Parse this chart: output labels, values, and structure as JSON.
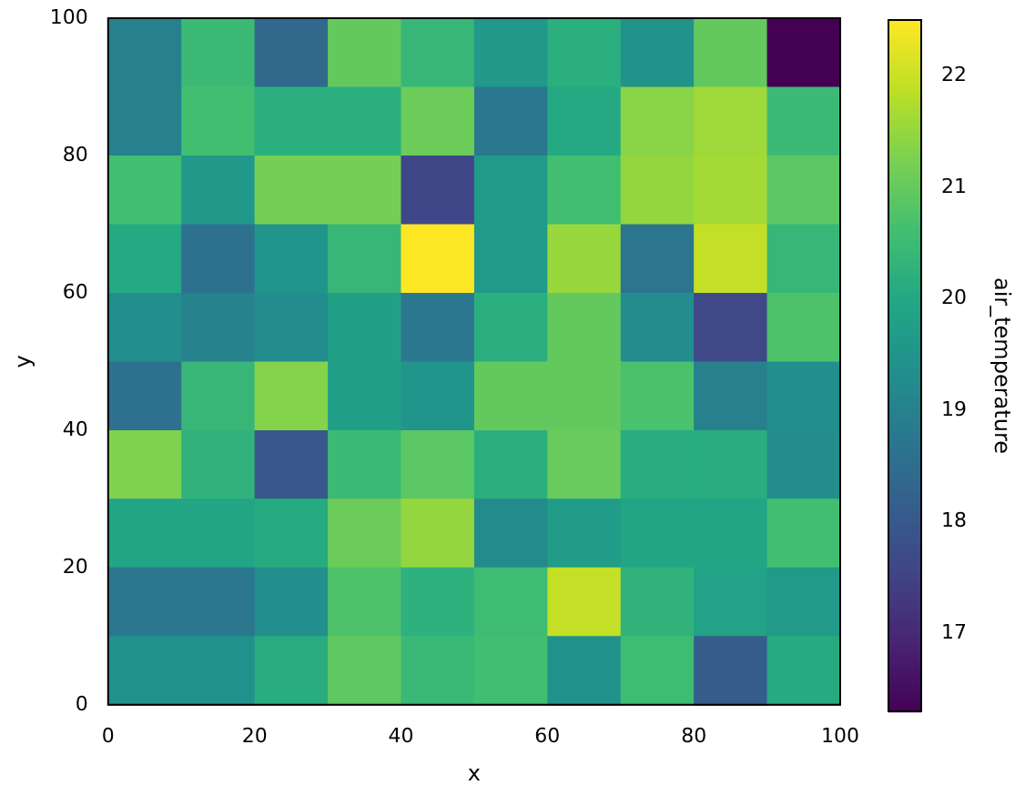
{
  "chart_data": {
    "type": "heatmap",
    "xlabel": "x",
    "ylabel": "y",
    "clabel": "air_temperature",
    "cells": [
      [
        19.0,
        20.5,
        18.4,
        21.0,
        20.4,
        19.6,
        20.2,
        19.45,
        21.0,
        16.3
      ],
      [
        19.0,
        20.6,
        20.2,
        20.2,
        21.1,
        18.75,
        20.05,
        21.4,
        21.6,
        20.5
      ],
      [
        20.6,
        19.6,
        21.2,
        21.2,
        17.6,
        19.65,
        20.6,
        21.5,
        21.65,
        20.9
      ],
      [
        20.05,
        18.6,
        19.5,
        20.4,
        22.5,
        19.65,
        21.55,
        18.7,
        21.95,
        20.4
      ],
      [
        19.35,
        19.05,
        19.3,
        19.8,
        18.75,
        20.2,
        21.0,
        19.3,
        17.65,
        20.75
      ],
      [
        18.6,
        20.4,
        21.35,
        19.8,
        19.5,
        21.0,
        21.0,
        20.7,
        19.0,
        19.35
      ],
      [
        21.3,
        20.3,
        18.0,
        20.5,
        20.9,
        20.2,
        21.05,
        20.15,
        20.15,
        19.3
      ],
      [
        19.95,
        19.95,
        20.1,
        21.1,
        21.5,
        19.25,
        19.7,
        19.95,
        19.95,
        20.6
      ],
      [
        18.75,
        18.75,
        19.35,
        20.75,
        20.25,
        20.55,
        21.95,
        20.3,
        19.85,
        19.65
      ],
      [
        19.4,
        19.4,
        20.15,
        20.95,
        20.45,
        20.6,
        19.4,
        20.55,
        18.1,
        20.1
      ]
    ],
    "clim": [
      16.3,
      22.5
    ],
    "cticks": [
      17,
      18,
      19,
      20,
      21,
      22
    ],
    "xlim": [
      0,
      100
    ],
    "xticks": [
      0,
      20,
      40,
      60,
      80,
      100
    ],
    "ylim": [
      0,
      100
    ],
    "yticks": [
      0,
      20,
      40,
      60,
      80,
      100
    ]
  }
}
